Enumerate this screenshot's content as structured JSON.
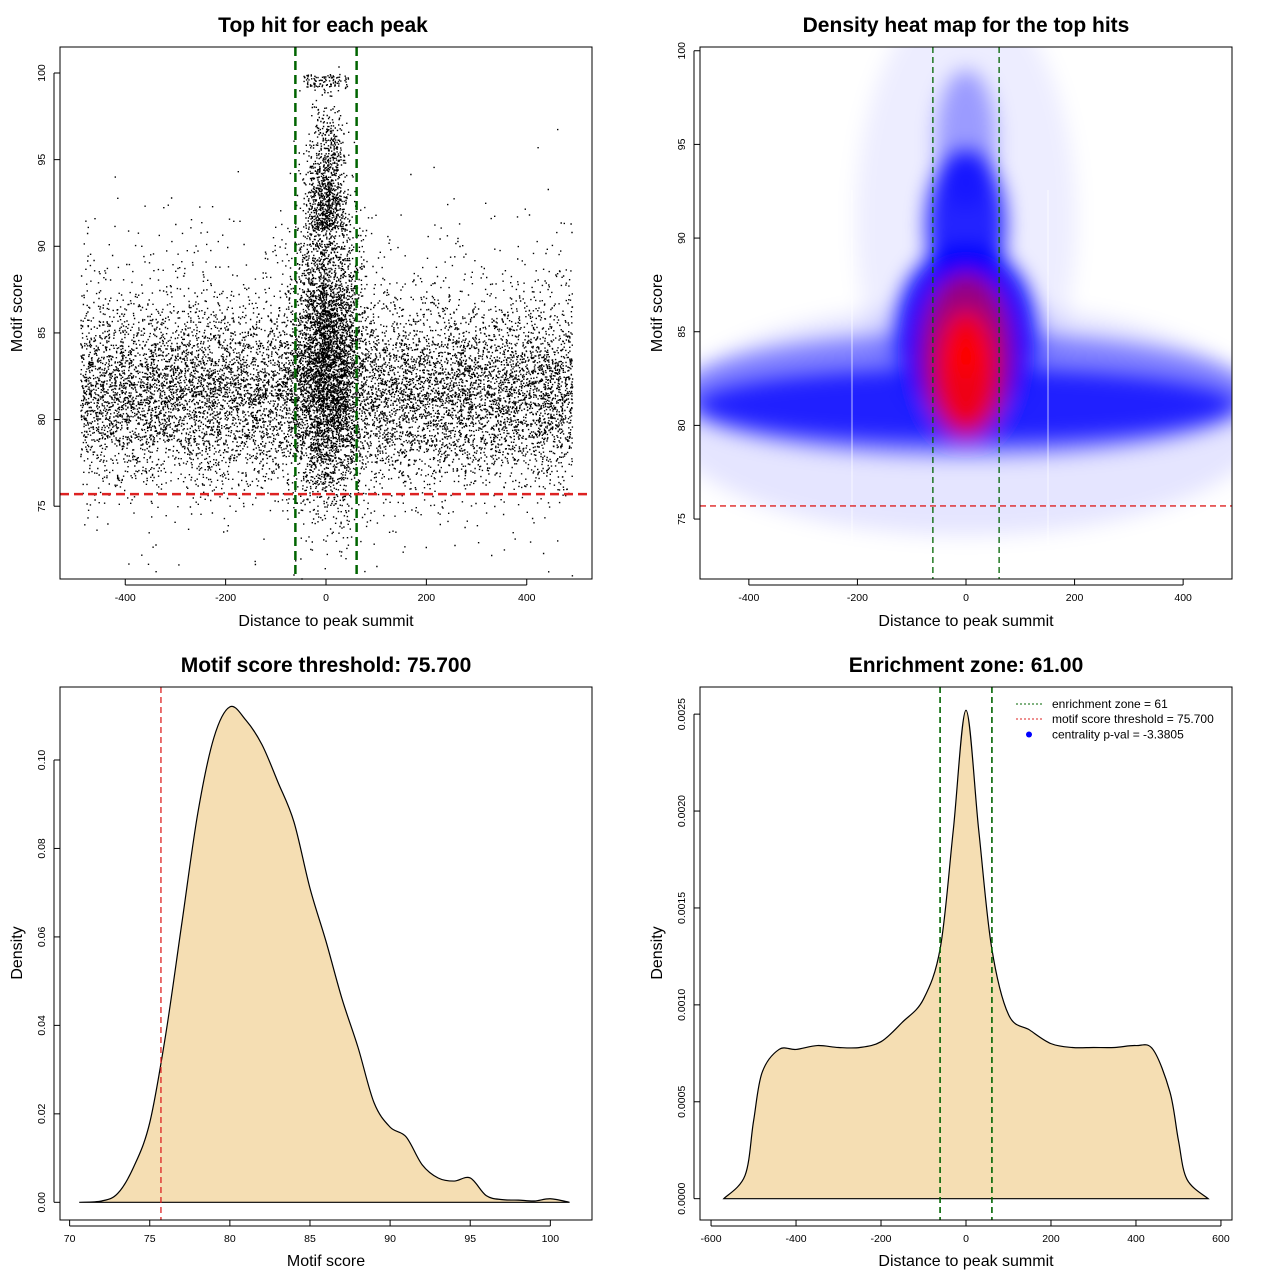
{
  "chart_data": [
    {
      "type": "scatter",
      "title": "Top hit for each peak",
      "xlabel": "Distance to peak summit",
      "ylabel": "Motif score",
      "xlim": [
        -530,
        530
      ],
      "ylim": [
        70.8,
        101.5
      ],
      "xticks": [
        "-400",
        "-200",
        "0",
        "200",
        "400"
      ],
      "yticks": [
        "75",
        "80",
        "85",
        "90",
        "95",
        "100"
      ],
      "n_points_approx": 25000,
      "point_color": "#000000",
      "vlines": {
        "values": [
          -61,
          61
        ],
        "color": "#006400",
        "style": "dashed"
      },
      "hline": {
        "value": 75.7,
        "color": "#dd2222",
        "style": "dashed"
      }
    },
    {
      "type": "heatmap",
      "title": "Density heat map for the top hits",
      "xlabel": "Distance to peak summit",
      "ylabel": "Motif score",
      "xlim": [
        -490,
        490
      ],
      "ylim": [
        71.8,
        100.2
      ],
      "xticks": [
        "-400",
        "-200",
        "0",
        "200",
        "400"
      ],
      "yticks": [
        "75",
        "80",
        "85",
        "90",
        "95",
        "100"
      ],
      "colors": [
        "#ffffff",
        "#0000ff",
        "#ff0000"
      ],
      "peak": {
        "x": 0,
        "y": 82.5
      },
      "vlines": {
        "values": [
          -61,
          61
        ],
        "color": "#006400",
        "style": "dashed"
      },
      "hline": {
        "value": 75.7,
        "color": "#dd2222",
        "style": "dashed"
      }
    },
    {
      "type": "area",
      "title": "Motif score threshold: 75.700",
      "xlabel": "Motif score",
      "ylabel": "Density",
      "xlim": [
        69.4,
        102.6
      ],
      "ylim": [
        -0.004,
        0.1165
      ],
      "xticks": [
        "70",
        "75",
        "80",
        "85",
        "90",
        "95",
        "100"
      ],
      "yticks": [
        "0.00",
        "0.02",
        "0.04",
        "0.06",
        "0.08",
        "0.10"
      ],
      "fill": "#f5deb3",
      "x": [
        70.6,
        72,
        73,
        74,
        75,
        76,
        77,
        78,
        79,
        80,
        81,
        82,
        83,
        84,
        85,
        86,
        87,
        88,
        89,
        90,
        91,
        92,
        93,
        94,
        95,
        96,
        97,
        98,
        99,
        100,
        101.2
      ],
      "y": [
        0.0,
        0.0003,
        0.002,
        0.008,
        0.018,
        0.038,
        0.063,
        0.088,
        0.105,
        0.112,
        0.109,
        0.1035,
        0.095,
        0.086,
        0.071,
        0.059,
        0.046,
        0.035,
        0.0225,
        0.017,
        0.0148,
        0.0085,
        0.0055,
        0.0048,
        0.0055,
        0.0015,
        0.0006,
        0.0005,
        0.0003,
        0.0008,
        0.0
      ],
      "vlines": {
        "values": [
          75.7
        ],
        "color": "#dd2222",
        "style": "dashed"
      }
    },
    {
      "type": "area",
      "title": "Enrichment zone: 61.00",
      "xlabel": "Distance to peak summit",
      "ylabel": "Density",
      "xlim": [
        -626,
        626
      ],
      "ylim": [
        -0.00011,
        0.00264
      ],
      "xticks": [
        "-600",
        "-400",
        "-200",
        "0",
        "200",
        "400",
        "600"
      ],
      "yticks": [
        "0.0000",
        "0.0005",
        "0.0010",
        "0.0015",
        "0.0020",
        "0.0025"
      ],
      "fill": "#f5deb3",
      "x": [
        -570,
        -520,
        -500,
        -480,
        -440,
        -400,
        -350,
        -300,
        -250,
        -200,
        -150,
        -100,
        -60,
        -30,
        0,
        30,
        60,
        100,
        150,
        200,
        250,
        300,
        350,
        400,
        440,
        480,
        500,
        520,
        570
      ],
      "y": [
        0.0,
        0.00012,
        0.0004,
        0.00065,
        0.00077,
        0.00077,
        0.00079,
        0.00078,
        0.00078,
        0.00081,
        0.00091,
        0.00103,
        0.0013,
        0.0019,
        0.00252,
        0.0019,
        0.0013,
        0.00095,
        0.00087,
        0.0008,
        0.00078,
        0.00078,
        0.00078,
        0.00079,
        0.00077,
        0.00055,
        0.0003,
        0.0001,
        0.0
      ],
      "vlines": {
        "values": [
          -61,
          61
        ],
        "color": "#006400",
        "style": "dashed"
      },
      "legend": {
        "placement": "top-right",
        "entries": [
          {
            "label": "enrichment zone = 61",
            "color": "#006400",
            "marker": "dotted"
          },
          {
            "label": "motif score threshold = 75.700",
            "color": "#dd2222",
            "marker": "dotted"
          },
          {
            "label": "centrality p-val = -3.3805",
            "color": "#0000ff",
            "marker": "point"
          }
        ]
      }
    }
  ]
}
